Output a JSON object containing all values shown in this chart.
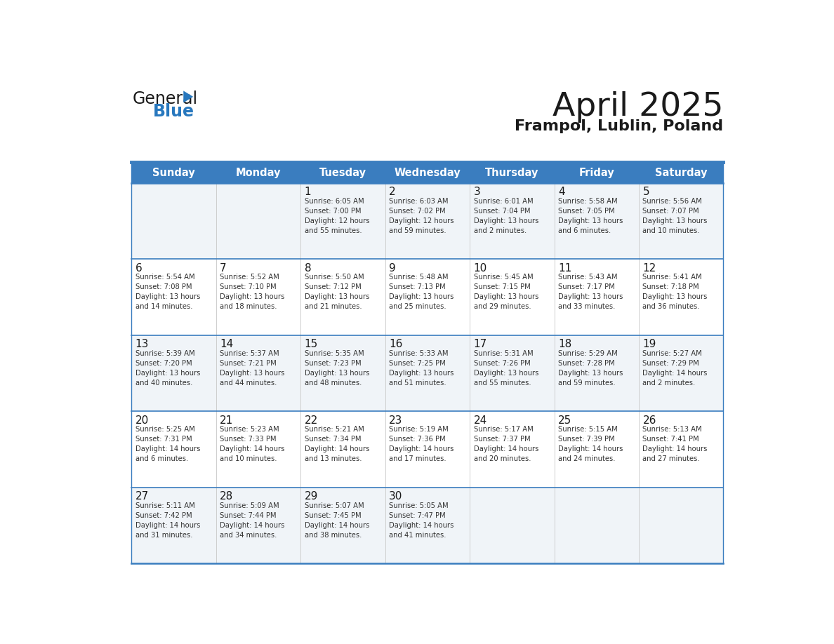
{
  "title": "April 2025",
  "subtitle": "Frampol, Lublin, Poland",
  "days_of_week": [
    "Sunday",
    "Monday",
    "Tuesday",
    "Wednesday",
    "Thursday",
    "Friday",
    "Saturday"
  ],
  "header_bg": "#3a7dbf",
  "header_text": "#ffffff",
  "row_bg_even": "#f0f4f8",
  "row_bg_odd": "#ffffff",
  "cell_border": "#c8c8c8",
  "separator_color": "#3a7dbf",
  "day_number_color": "#1a1a1a",
  "day_text_color": "#333333",
  "title_color": "#1a1a1a",
  "subtitle_color": "#1a1a1a",
  "logo_color_general": "#1a1a1a",
  "logo_color_blue": "#2878be",
  "weeks": [
    [
      {
        "day": null,
        "info": null
      },
      {
        "day": null,
        "info": null
      },
      {
        "day": "1",
        "info": "Sunrise: 6:05 AM\nSunset: 7:00 PM\nDaylight: 12 hours\nand 55 minutes."
      },
      {
        "day": "2",
        "info": "Sunrise: 6:03 AM\nSunset: 7:02 PM\nDaylight: 12 hours\nand 59 minutes."
      },
      {
        "day": "3",
        "info": "Sunrise: 6:01 AM\nSunset: 7:04 PM\nDaylight: 13 hours\nand 2 minutes."
      },
      {
        "day": "4",
        "info": "Sunrise: 5:58 AM\nSunset: 7:05 PM\nDaylight: 13 hours\nand 6 minutes."
      },
      {
        "day": "5",
        "info": "Sunrise: 5:56 AM\nSunset: 7:07 PM\nDaylight: 13 hours\nand 10 minutes."
      }
    ],
    [
      {
        "day": "6",
        "info": "Sunrise: 5:54 AM\nSunset: 7:08 PM\nDaylight: 13 hours\nand 14 minutes."
      },
      {
        "day": "7",
        "info": "Sunrise: 5:52 AM\nSunset: 7:10 PM\nDaylight: 13 hours\nand 18 minutes."
      },
      {
        "day": "8",
        "info": "Sunrise: 5:50 AM\nSunset: 7:12 PM\nDaylight: 13 hours\nand 21 minutes."
      },
      {
        "day": "9",
        "info": "Sunrise: 5:48 AM\nSunset: 7:13 PM\nDaylight: 13 hours\nand 25 minutes."
      },
      {
        "day": "10",
        "info": "Sunrise: 5:45 AM\nSunset: 7:15 PM\nDaylight: 13 hours\nand 29 minutes."
      },
      {
        "day": "11",
        "info": "Sunrise: 5:43 AM\nSunset: 7:17 PM\nDaylight: 13 hours\nand 33 minutes."
      },
      {
        "day": "12",
        "info": "Sunrise: 5:41 AM\nSunset: 7:18 PM\nDaylight: 13 hours\nand 36 minutes."
      }
    ],
    [
      {
        "day": "13",
        "info": "Sunrise: 5:39 AM\nSunset: 7:20 PM\nDaylight: 13 hours\nand 40 minutes."
      },
      {
        "day": "14",
        "info": "Sunrise: 5:37 AM\nSunset: 7:21 PM\nDaylight: 13 hours\nand 44 minutes."
      },
      {
        "day": "15",
        "info": "Sunrise: 5:35 AM\nSunset: 7:23 PM\nDaylight: 13 hours\nand 48 minutes."
      },
      {
        "day": "16",
        "info": "Sunrise: 5:33 AM\nSunset: 7:25 PM\nDaylight: 13 hours\nand 51 minutes."
      },
      {
        "day": "17",
        "info": "Sunrise: 5:31 AM\nSunset: 7:26 PM\nDaylight: 13 hours\nand 55 minutes."
      },
      {
        "day": "18",
        "info": "Sunrise: 5:29 AM\nSunset: 7:28 PM\nDaylight: 13 hours\nand 59 minutes."
      },
      {
        "day": "19",
        "info": "Sunrise: 5:27 AM\nSunset: 7:29 PM\nDaylight: 14 hours\nand 2 minutes."
      }
    ],
    [
      {
        "day": "20",
        "info": "Sunrise: 5:25 AM\nSunset: 7:31 PM\nDaylight: 14 hours\nand 6 minutes."
      },
      {
        "day": "21",
        "info": "Sunrise: 5:23 AM\nSunset: 7:33 PM\nDaylight: 14 hours\nand 10 minutes."
      },
      {
        "day": "22",
        "info": "Sunrise: 5:21 AM\nSunset: 7:34 PM\nDaylight: 14 hours\nand 13 minutes."
      },
      {
        "day": "23",
        "info": "Sunrise: 5:19 AM\nSunset: 7:36 PM\nDaylight: 14 hours\nand 17 minutes."
      },
      {
        "day": "24",
        "info": "Sunrise: 5:17 AM\nSunset: 7:37 PM\nDaylight: 14 hours\nand 20 minutes."
      },
      {
        "day": "25",
        "info": "Sunrise: 5:15 AM\nSunset: 7:39 PM\nDaylight: 14 hours\nand 24 minutes."
      },
      {
        "day": "26",
        "info": "Sunrise: 5:13 AM\nSunset: 7:41 PM\nDaylight: 14 hours\nand 27 minutes."
      }
    ],
    [
      {
        "day": "27",
        "info": "Sunrise: 5:11 AM\nSunset: 7:42 PM\nDaylight: 14 hours\nand 31 minutes."
      },
      {
        "day": "28",
        "info": "Sunrise: 5:09 AM\nSunset: 7:44 PM\nDaylight: 14 hours\nand 34 minutes."
      },
      {
        "day": "29",
        "info": "Sunrise: 5:07 AM\nSunset: 7:45 PM\nDaylight: 14 hours\nand 38 minutes."
      },
      {
        "day": "30",
        "info": "Sunrise: 5:05 AM\nSunset: 7:47 PM\nDaylight: 14 hours\nand 41 minutes."
      },
      {
        "day": null,
        "info": null
      },
      {
        "day": null,
        "info": null
      },
      {
        "day": null,
        "info": null
      }
    ]
  ]
}
